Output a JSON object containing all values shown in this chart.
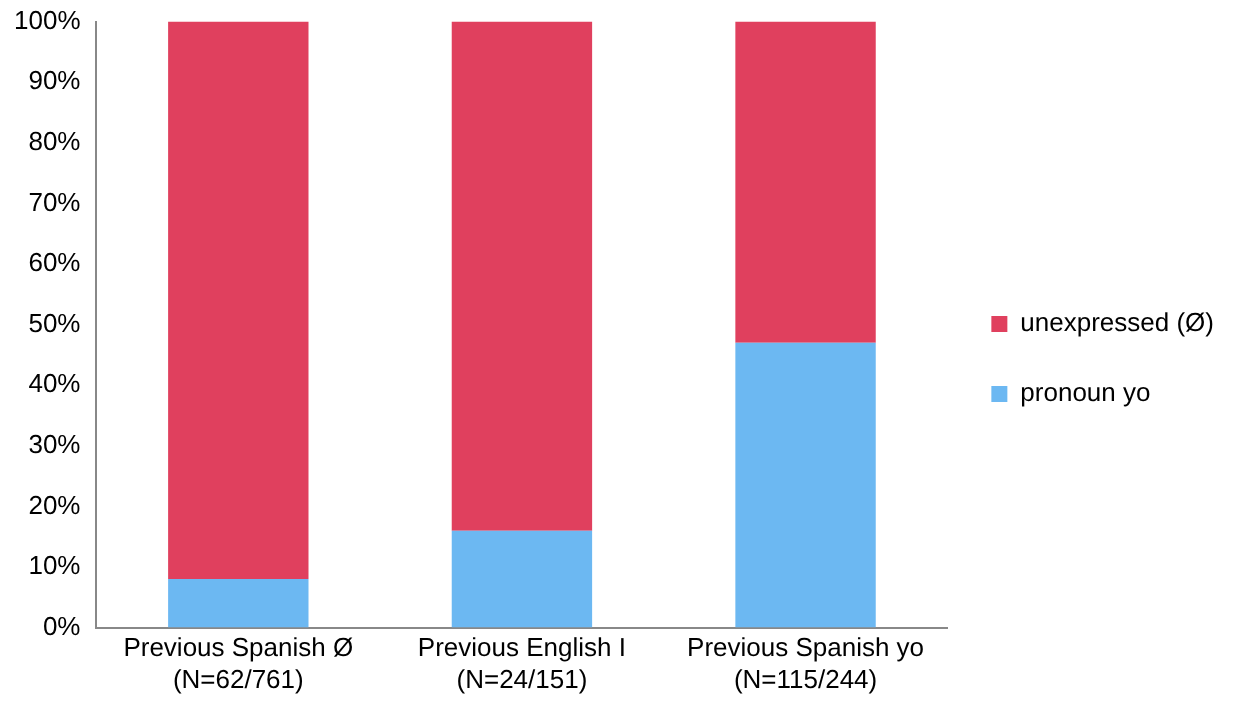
{
  "chart_data": {
    "type": "bar",
    "stacked": true,
    "categories": [
      "Previous Spanish Ø\n(N=62/761)",
      "Previous English I\n(N=24/151)",
      "Previous Spanish yo\n(N=115/244)"
    ],
    "series": [
      {
        "name": "pronoun yo",
        "color": "#6cb8f2",
        "values": [
          8,
          16,
          47
        ]
      },
      {
        "name": "unexpressed (Ø)",
        "color": "#e0405e",
        "values": [
          92,
          84,
          53
        ]
      }
    ],
    "ylim": [
      0,
      100
    ],
    "yticks": [
      {
        "value": 0,
        "label": "0%"
      },
      {
        "value": 10,
        "label": "10%"
      },
      {
        "value": 20,
        "label": "20%"
      },
      {
        "value": 30,
        "label": "30%"
      },
      {
        "value": 40,
        "label": "40%"
      },
      {
        "value": 50,
        "label": "50%"
      },
      {
        "value": 60,
        "label": "60%"
      },
      {
        "value": 70,
        "label": "70%"
      },
      {
        "value": 80,
        "label": "80%"
      },
      {
        "value": 90,
        "label": "90%"
      },
      {
        "value": 100,
        "label": "100%"
      }
    ],
    "grid": false,
    "legend": "right"
  }
}
